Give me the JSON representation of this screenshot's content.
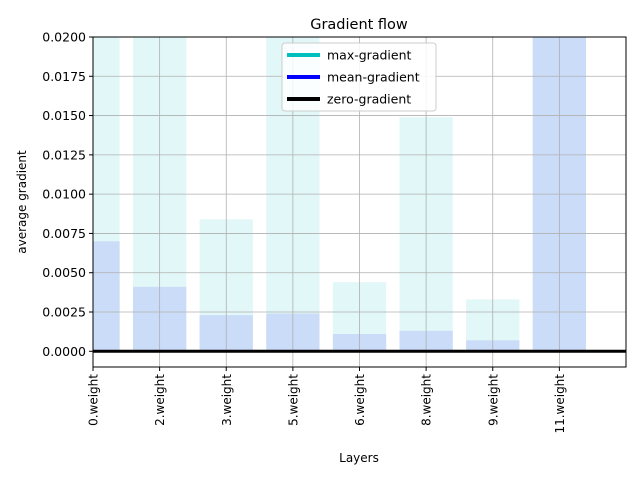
{
  "chart_data": {
    "type": "bar",
    "title": "Gradient flow",
    "xlabel": "Layers",
    "ylabel": "average gradient",
    "categories": [
      "0.weight",
      "2.weight",
      "3.weight",
      "5.weight",
      "6.weight",
      "8.weight",
      "9.weight",
      "11.weight"
    ],
    "x_positions": [
      0,
      1,
      2,
      3,
      4,
      5,
      6,
      7
    ],
    "xlim": [
      0,
      8
    ],
    "ylim": [
      -0.001,
      0.02
    ],
    "yticks": [
      0.0,
      0.0025,
      0.005,
      0.0075,
      0.01,
      0.0125,
      0.015,
      0.0175,
      0.02
    ],
    "ytick_labels": [
      "0.0000",
      "0.0025",
      "0.0050",
      "0.0075",
      "0.0100",
      "0.0125",
      "0.0150",
      "0.0175",
      "0.0200"
    ],
    "grid": true,
    "legend_position": "top-center",
    "series": [
      {
        "name": "max-gradient",
        "color": "#00BFBF",
        "bar_fill": "#e2f7f7",
        "values": [
          0.021,
          0.021,
          0.0084,
          0.021,
          0.0044,
          0.0149,
          0.0033,
          0.021
        ]
      },
      {
        "name": "mean-gradient",
        "color": "#0000FF",
        "bar_fill": "#cbdcf8",
        "values": [
          0.007,
          0.0041,
          0.0023,
          0.0024,
          0.0011,
          0.0013,
          0.0007,
          0.021
        ]
      },
      {
        "name": "zero-gradient",
        "color": "#000000",
        "values": [
          0,
          0,
          0,
          0,
          0,
          0,
          0,
          0
        ]
      }
    ]
  }
}
